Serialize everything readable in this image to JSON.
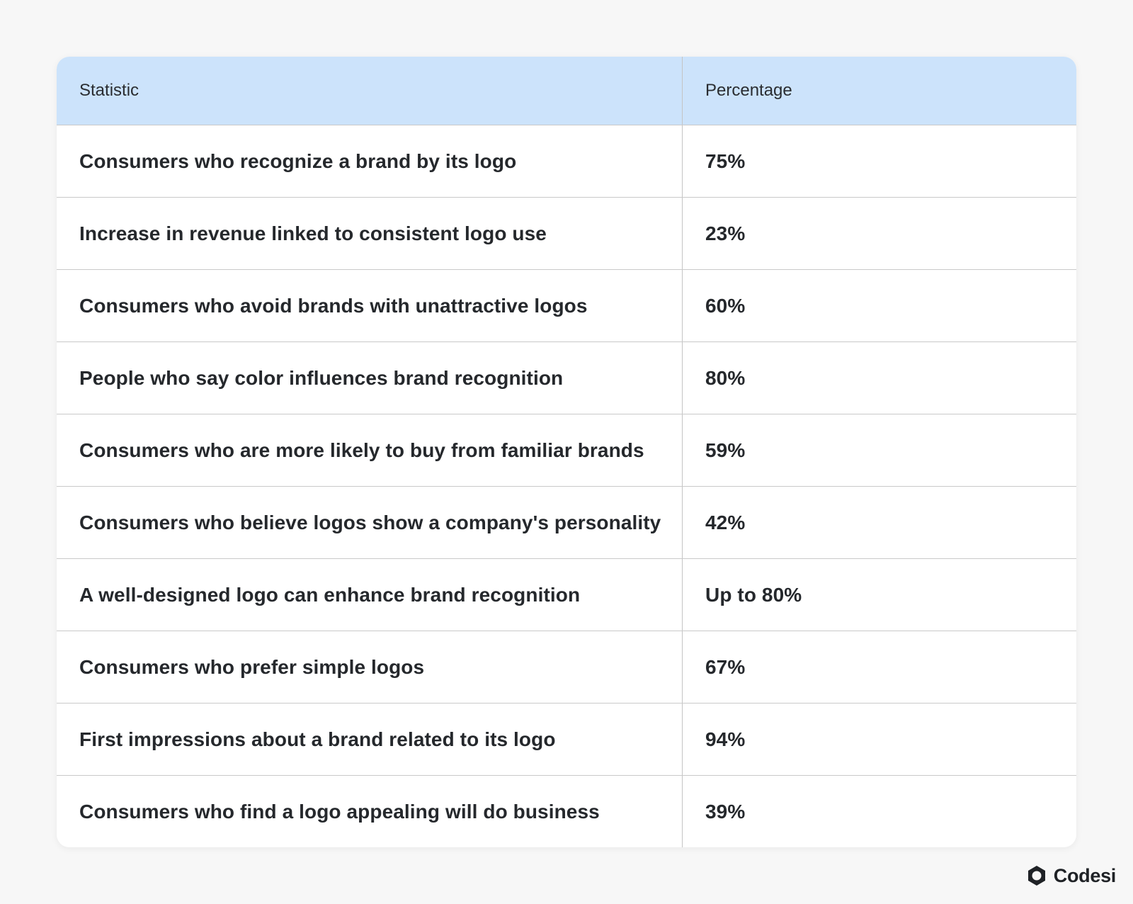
{
  "table": {
    "headers": {
      "statistic": "Statistic",
      "percentage": "Percentage"
    },
    "rows": [
      {
        "statistic": "Consumers who recognize a brand by its logo",
        "percentage": "75%"
      },
      {
        "statistic": "Increase in revenue linked to consistent logo use",
        "percentage": "23%"
      },
      {
        "statistic": "Consumers who avoid brands with unattractive logos",
        "percentage": "60%"
      },
      {
        "statistic": "People who say color influences brand recognition",
        "percentage": "80%"
      },
      {
        "statistic": "Consumers who are more likely to buy from familiar brands",
        "percentage": "59%"
      },
      {
        "statistic": "Consumers who believe logos show a company's personality",
        "percentage": "42%"
      },
      {
        "statistic": "A well-designed logo can enhance brand recognition",
        "percentage": "Up to 80%"
      },
      {
        "statistic": "Consumers who prefer simple logos",
        "percentage": "67%"
      },
      {
        "statistic": "First impressions about a brand related to its logo",
        "percentage": "94%"
      },
      {
        "statistic": "Consumers who find a logo appealing will do business",
        "percentage": "39%"
      }
    ]
  },
  "brand": {
    "name": "Codesi",
    "icon": "codesi-logo-icon"
  },
  "colors": {
    "page_background": "#f7f7f7",
    "header_background": "#cce3fb",
    "text": "#25282c",
    "divider": "#c9c9c9"
  }
}
